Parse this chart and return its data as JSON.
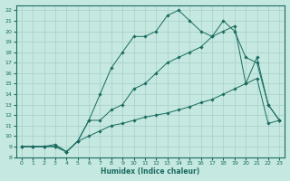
{
  "xlabel": "Humidex (Indice chaleur)",
  "bg_color": "#c5e8e0",
  "line_color": "#1a6b60",
  "grid_color": "#a8cfc8",
  "xlim": [
    -0.5,
    23.5
  ],
  "ylim": [
    8,
    22.5
  ],
  "xticks": [
    0,
    1,
    2,
    3,
    4,
    5,
    6,
    7,
    8,
    9,
    10,
    11,
    12,
    13,
    14,
    15,
    16,
    17,
    18,
    19,
    20,
    21,
    22,
    23
  ],
  "yticks": [
    8,
    9,
    10,
    11,
    12,
    13,
    14,
    15,
    16,
    17,
    18,
    19,
    20,
    21,
    22
  ],
  "lines": [
    {
      "x": [
        0,
        1,
        2,
        3,
        4,
        5,
        6,
        7,
        8,
        9,
        10,
        11,
        12,
        13,
        14,
        15,
        16,
        17,
        18,
        19,
        20,
        21,
        22,
        23
      ],
      "y": [
        9.0,
        9.0,
        9.0,
        9.0,
        8.5,
        9.5,
        11.5,
        14.0,
        16.5,
        18.0,
        19.5,
        19.5,
        20.0,
        21.5,
        22.0,
        21.0,
        20.0,
        19.5,
        21.0,
        20.0,
        17.5,
        17.0,
        13.0,
        11.5
      ],
      "marked_x": [
        0,
        1,
        3,
        4,
        5,
        7,
        8,
        9,
        10,
        11,
        13,
        14,
        15,
        16,
        18,
        19,
        20,
        22,
        23
      ]
    },
    {
      "x": [
        0,
        1,
        2,
        3,
        4,
        5,
        6,
        7,
        8,
        9,
        10,
        11,
        12,
        13,
        14,
        15,
        16,
        17,
        18,
        19,
        20,
        21,
        22,
        23
      ],
      "y": [
        9.0,
        9.0,
        9.0,
        9.0,
        8.5,
        9.5,
        11.5,
        11.5,
        12.5,
        13.0,
        14.5,
        15.0,
        16.0,
        17.0,
        17.5,
        18.0,
        18.5,
        19.5,
        20.0,
        20.5,
        15.0,
        17.5,
        13.0,
        11.5
      ],
      "marked_x": [
        0,
        1,
        3,
        4,
        5,
        7,
        9,
        11,
        13,
        15,
        17,
        19,
        20,
        22,
        23
      ]
    },
    {
      "x": [
        0,
        1,
        2,
        3,
        4,
        5,
        6,
        7,
        8,
        9,
        10,
        11,
        12,
        13,
        14,
        15,
        16,
        17,
        18,
        19,
        20,
        21,
        22,
        23
      ],
      "y": [
        9.0,
        9.0,
        9.0,
        9.2,
        8.5,
        9.5,
        10.0,
        10.5,
        11.0,
        11.2,
        11.5,
        11.8,
        12.0,
        12.2,
        12.5,
        12.8,
        13.2,
        13.5,
        14.0,
        14.5,
        15.0,
        15.5,
        11.2,
        11.5
      ],
      "marked_x": [
        0,
        1,
        2,
        3,
        4,
        5,
        23
      ]
    }
  ]
}
